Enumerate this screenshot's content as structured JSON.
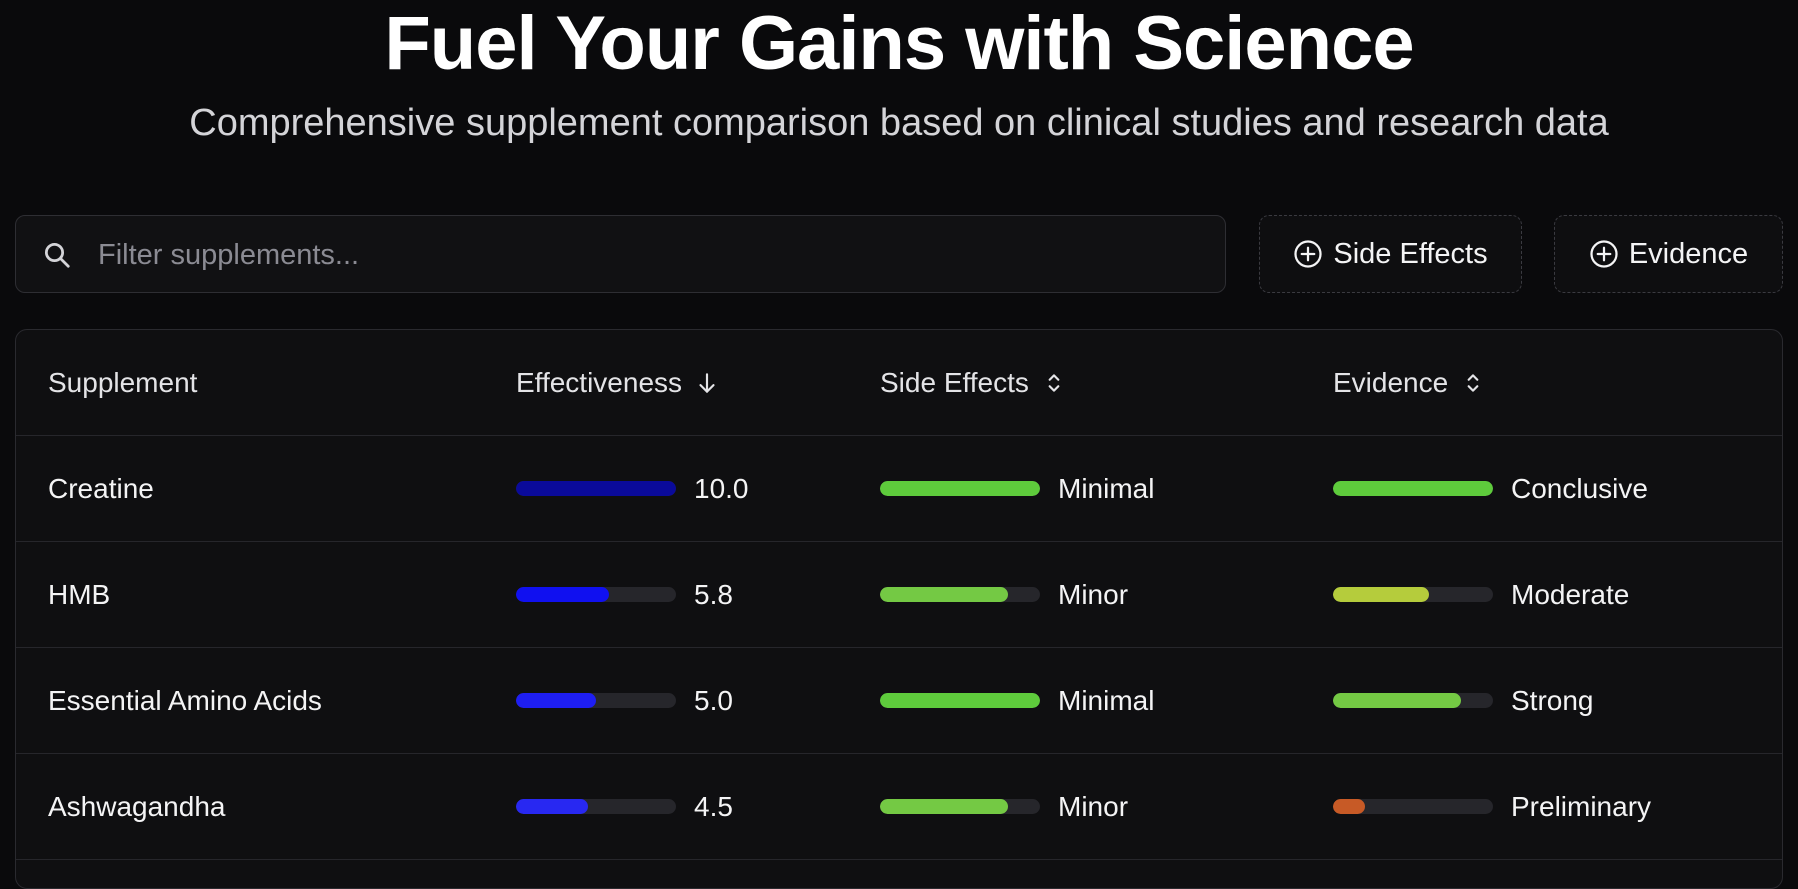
{
  "hero": {
    "title": "Fuel Your Gains with Science",
    "subtitle": "Comprehensive supplement comparison based on clinical studies and research data"
  },
  "search": {
    "icon": "search-icon",
    "placeholder": "Filter supplements...",
    "value": ""
  },
  "filters": [
    {
      "label": "Side Effects",
      "icon": "plus-circle-icon"
    },
    {
      "label": "Evidence",
      "icon": "plus-circle-icon"
    }
  ],
  "table": {
    "columns": [
      {
        "label": "Supplement",
        "sort": "none",
        "sortable": false
      },
      {
        "label": "Effectiveness",
        "sort": "desc",
        "sort_icon": "arrow-down-icon"
      },
      {
        "label": "Side Effects",
        "sort": "none",
        "sort_icon": "chevron-up-down-icon"
      },
      {
        "label": "Evidence",
        "sort": "none",
        "sort_icon": "chevron-up-down-icon"
      }
    ],
    "rows": [
      {
        "name": "Creatine",
        "effectiveness": {
          "value": "10.0",
          "fraction": 1.0,
          "color": "#0a0a9a"
        },
        "side_effects": {
          "label": "Minimal",
          "fraction": 1.0,
          "color": "#5ecb3c"
        },
        "evidence": {
          "label": "Conclusive",
          "fraction": 1.0,
          "color": "#5ecb3c"
        }
      },
      {
        "name": "HMB",
        "effectiveness": {
          "value": "5.8",
          "fraction": 0.58,
          "color": "#1010f0"
        },
        "side_effects": {
          "label": "Minor",
          "fraction": 0.8,
          "color": "#74c944"
        },
        "evidence": {
          "label": "Moderate",
          "fraction": 0.6,
          "color": "#b5cc3c"
        }
      },
      {
        "name": "Essential Amino Acids",
        "effectiveness": {
          "value": "5.0",
          "fraction": 0.5,
          "color": "#1e1ef2"
        },
        "side_effects": {
          "label": "Minimal",
          "fraction": 1.0,
          "color": "#5ecb3c"
        },
        "evidence": {
          "label": "Strong",
          "fraction": 0.8,
          "color": "#74c944"
        }
      },
      {
        "name": "Ashwagandha",
        "effectiveness": {
          "value": "4.5",
          "fraction": 0.45,
          "color": "#2828f2"
        },
        "side_effects": {
          "label": "Minor",
          "fraction": 0.8,
          "color": "#74c944"
        },
        "evidence": {
          "label": "Preliminary",
          "fraction": 0.2,
          "color": "#c75a26"
        }
      }
    ]
  }
}
